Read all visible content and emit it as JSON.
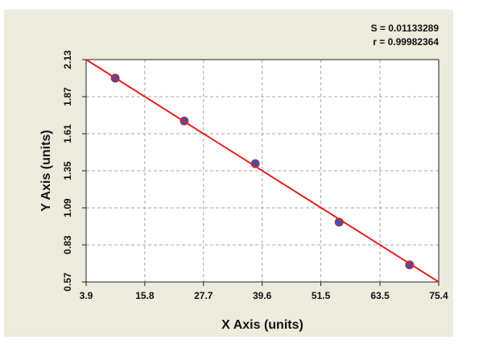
{
  "chart_data": {
    "type": "scatter",
    "annotations": [
      "S = 0.01133289",
      "r = 0.99982364"
    ],
    "x_label": "X Axis (units)",
    "y_label": "Y Axis (units)",
    "xlim": [
      3.9,
      75.4
    ],
    "xticks": [
      3.9,
      15.8,
      27.7,
      39.6,
      51.5,
      63.5,
      75.4
    ],
    "ylim": [
      0.57,
      2.13
    ],
    "yticks": [
      0.57,
      0.83,
      1.09,
      1.35,
      1.61,
      1.87,
      2.13
    ],
    "grid": true,
    "series": [
      {
        "type": "scatter",
        "color": "#3b4fb8",
        "x": [
          9.8,
          23.8,
          38.2,
          55.2,
          69.5
        ],
        "values": [
          2.0,
          1.7,
          1.4,
          0.99,
          0.69
        ]
      },
      {
        "type": "line",
        "color": "#e32020",
        "x": [
          3.9,
          75.4
        ],
        "values": [
          2.13,
          0.57
        ]
      }
    ]
  }
}
